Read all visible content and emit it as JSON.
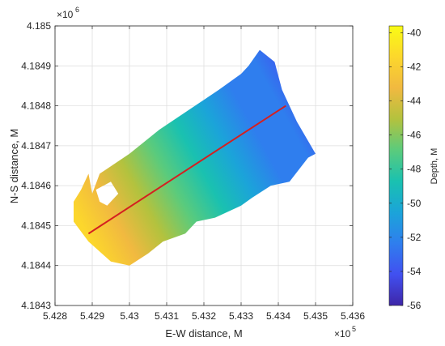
{
  "chart_data": {
    "type": "heatmap",
    "title": "",
    "xlabel": "E-W distance, M",
    "ylabel": "N-S distance, M",
    "x_exponent": "×10",
    "x_exponent_power": "5",
    "y_exponent": "×10",
    "y_exponent_power": "6",
    "xlim": [
      5.428,
      5.436
    ],
    "ylim": [
      4.1843,
      4.185
    ],
    "x_ticks": [
      5.428,
      5.429,
      5.43,
      5.431,
      5.432,
      5.433,
      5.434,
      5.435,
      5.436
    ],
    "x_tick_labels": [
      "5.428",
      "5.429",
      "5.43",
      "5.431",
      "5.432",
      "5.433",
      "5.434",
      "5.435",
      "5.436"
    ],
    "y_ticks": [
      4.1843,
      4.1844,
      4.1845,
      4.1846,
      4.1847,
      4.1848,
      4.1849,
      4.185
    ],
    "y_tick_labels": [
      "4.1843",
      "4.1844",
      "4.1845",
      "4.1846",
      "4.1847",
      "4.1848",
      "4.1849",
      "4.185"
    ],
    "grid": true,
    "survey_outline": [
      [
        5.4289,
        4.18463
      ],
      [
        5.429,
        4.18458
      ],
      [
        5.4292,
        4.18463
      ],
      [
        5.43,
        4.18468
      ],
      [
        5.4308,
        4.18474
      ],
      [
        5.4316,
        4.18479
      ],
      [
        5.4324,
        4.18484
      ],
      [
        5.433,
        4.18488
      ],
      [
        5.4332,
        4.1849
      ],
      [
        5.4335,
        4.18494
      ],
      [
        5.4339,
        4.18491
      ],
      [
        5.4341,
        4.18484
      ],
      [
        5.4345,
        4.18476
      ],
      [
        5.435,
        4.18468
      ],
      [
        5.4348,
        4.18467
      ],
      [
        5.4343,
        4.18461
      ],
      [
        5.4338,
        4.1846
      ],
      [
        5.4333,
        4.18457
      ],
      [
        5.433,
        4.18455
      ],
      [
        5.4323,
        4.18452
      ],
      [
        5.4318,
        4.18451
      ],
      [
        5.4315,
        4.18448
      ],
      [
        5.4309,
        4.18446
      ],
      [
        5.4305,
        4.18443
      ],
      [
        5.43,
        4.1844
      ],
      [
        5.4295,
        4.18441
      ],
      [
        5.4289,
        4.18446
      ],
      [
        5.4285,
        4.18451
      ],
      [
        5.4285,
        4.18456
      ],
      [
        5.4287,
        4.18459
      ]
    ],
    "hole_outline": [
      [
        5.4291,
        4.18459
      ],
      [
        5.4295,
        4.18461
      ],
      [
        5.4297,
        4.18458
      ],
      [
        5.4294,
        4.18455
      ],
      [
        5.4292,
        4.18456
      ]
    ],
    "profile_line": {
      "start": [
        5.4289,
        4.18448
      ],
      "end": [
        5.4342,
        4.1848
      ],
      "color": "#d42020"
    },
    "depth_gradient": {
      "shallow_point": [
        5.4286,
        4.18452
      ],
      "deep_point": [
        5.4348,
        4.18484
      ],
      "shallow_depth": -41,
      "deep_depth": -55
    },
    "colorbar": {
      "label": "Depth, M",
      "min": -56,
      "max": -39.6,
      "ticks": [
        -40,
        -42,
        -44,
        -46,
        -48,
        -50,
        -52,
        -54,
        -56
      ],
      "tick_labels": [
        "-40",
        "-42",
        "-44",
        "-46",
        "-48",
        "-50",
        "-52",
        "-54",
        "-56"
      ],
      "colormap": "parula",
      "colors": [
        "#3e26a8",
        "#4150f0",
        "#2f7eee",
        "#1ba4d9",
        "#1ac1b0",
        "#5bcb7c",
        "#b3c23e",
        "#f1b940",
        "#fcd72c",
        "#f9fb15"
      ]
    }
  }
}
